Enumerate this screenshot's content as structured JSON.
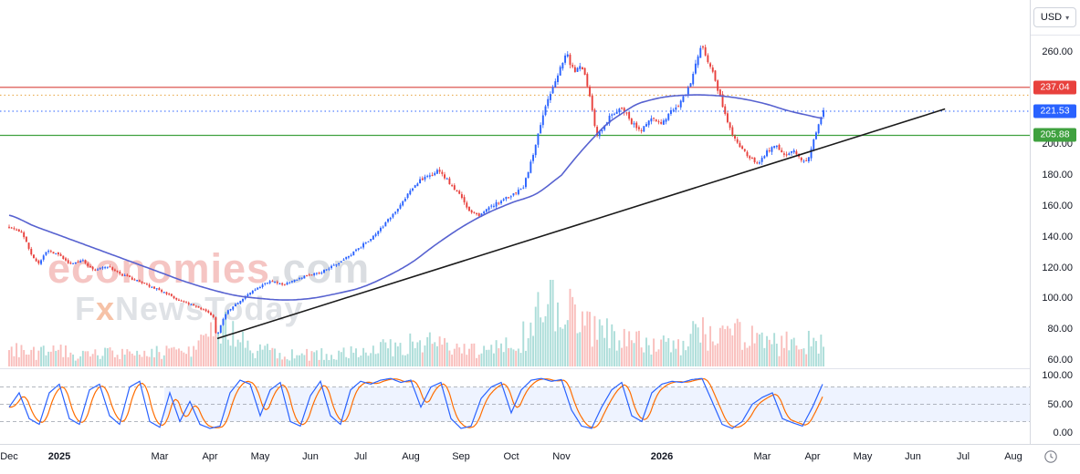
{
  "header": {
    "currency_selector": {
      "label": "USD",
      "chevron": "▾"
    }
  },
  "watermark": {
    "brand": "economies",
    "brand_suffix": ".com",
    "tagline_prefix": "F",
    "tagline_x": "x",
    "tagline_rest": "NewsToday"
  },
  "price_axis": {
    "ticks": [
      {
        "label": "260.00",
        "value": 260
      },
      {
        "label": "200.00",
        "value": 200
      },
      {
        "label": "180.00",
        "value": 180
      },
      {
        "label": "160.00",
        "value": 160
      },
      {
        "label": "140.00",
        "value": 140
      },
      {
        "label": "120.00",
        "value": 120
      },
      {
        "label": "100.00",
        "value": 100
      },
      {
        "label": "80.00",
        "value": 80
      },
      {
        "label": "60.00",
        "value": 60
      }
    ],
    "badges": [
      {
        "name": "resistance",
        "label": "237.04",
        "value": 237.04,
        "color": "#e8413d"
      },
      {
        "name": "last-price",
        "label": "221.53",
        "value": 221.53,
        "color": "#2962ff"
      },
      {
        "name": "support",
        "label": "205.88",
        "value": 205.88,
        "color": "#3fa13f"
      }
    ]
  },
  "oscillator_axis": {
    "ticks": [
      {
        "label": "100.00",
        "value": 100
      },
      {
        "label": "50.00",
        "value": 50
      },
      {
        "label": "0.00",
        "value": 0
      }
    ]
  },
  "time_axis": {
    "labels": [
      {
        "text": "Dec",
        "m": 0,
        "bold": false
      },
      {
        "text": "2025",
        "m": 1,
        "bold": true
      },
      {
        "text": "Mar",
        "m": 3,
        "bold": false
      },
      {
        "text": "Apr",
        "m": 4,
        "bold": false
      },
      {
        "text": "May",
        "m": 5,
        "bold": false
      },
      {
        "text": "Jun",
        "m": 6,
        "bold": false
      },
      {
        "text": "Jul",
        "m": 7,
        "bold": false
      },
      {
        "text": "Aug",
        "m": 8,
        "bold": false
      },
      {
        "text": "Sep",
        "m": 9,
        "bold": false
      },
      {
        "text": "Oct",
        "m": 10,
        "bold": false
      },
      {
        "text": "Nov",
        "m": 11,
        "bold": false
      },
      {
        "text": "2026",
        "m": 13,
        "bold": true
      },
      {
        "text": "Mar",
        "m": 15,
        "bold": false
      },
      {
        "text": "Apr",
        "m": 16,
        "bold": false
      },
      {
        "text": "May",
        "m": 17,
        "bold": false
      },
      {
        "text": "Jun",
        "m": 18,
        "bold": false
      },
      {
        "text": "Jul",
        "m": 19,
        "bold": false
      },
      {
        "text": "Aug",
        "m": 20,
        "bold": false
      }
    ]
  },
  "chart_data": {
    "type": "candlestick",
    "currency": "USD",
    "interval": "daily",
    "x_unit": "months since Dec 2024 (0 = Dec 2024, 13 = Jan 2026)",
    "visible_range": {
      "from": "Dec 2024",
      "to": "Aug 2026"
    },
    "y_axis": {
      "ylim": [
        55,
        272
      ],
      "tick_values": [
        260,
        240,
        220,
        200,
        180,
        160,
        140,
        120,
        100,
        80,
        60
      ]
    },
    "x_tick_labels": [
      "Dec",
      "2025",
      "Mar",
      "Apr",
      "May",
      "Jun",
      "Jul",
      "Aug",
      "Sep",
      "Oct",
      "Nov",
      "2026",
      "Mar",
      "Apr",
      "May",
      "Jun",
      "Jul",
      "Aug"
    ],
    "last_price": 221.53,
    "levels": [
      {
        "value": 237.04,
        "label": "237.04",
        "color": "#d8453f",
        "style": "solid",
        "role": "resistance"
      },
      {
        "value": 232.0,
        "label": "",
        "color": "#e8a33d",
        "style": "dotted",
        "role": "minor-level"
      },
      {
        "value": 221.53,
        "label": "221.53",
        "color": "#2962ff",
        "style": "dotted",
        "role": "last-price"
      },
      {
        "value": 205.88,
        "label": "205.88",
        "color": "#3fa13f",
        "style": "solid",
        "role": "support"
      }
    ],
    "trendline": {
      "from": {
        "month": 4.145,
        "price": 74
      },
      "to": {
        "month": 18.64,
        "price": 223
      }
    },
    "close_path": [
      [
        0,
        147
      ],
      [
        0.25,
        143
      ],
      [
        0.45,
        128
      ],
      [
        0.6,
        122
      ],
      [
        0.75,
        131
      ],
      [
        1,
        128
      ],
      [
        1.2,
        122
      ],
      [
        1.45,
        125
      ],
      [
        1.7,
        118
      ],
      [
        1.95,
        121
      ],
      [
        2.2,
        116
      ],
      [
        2.5,
        112
      ],
      [
        2.8,
        108
      ],
      [
        3.1,
        104
      ],
      [
        3.35,
        99
      ],
      [
        3.6,
        96
      ],
      [
        3.85,
        93
      ],
      [
        4,
        90
      ],
      [
        4.08,
        88
      ],
      [
        4.13,
        74
      ],
      [
        4.2,
        82
      ],
      [
        4.35,
        92
      ],
      [
        4.5,
        96
      ],
      [
        4.7,
        101
      ],
      [
        4.95,
        107
      ],
      [
        5.2,
        111
      ],
      [
        5.45,
        109
      ],
      [
        5.7,
        112
      ],
      [
        5.95,
        115
      ],
      [
        6.2,
        117
      ],
      [
        6.45,
        121
      ],
      [
        6.7,
        126
      ],
      [
        6.95,
        132
      ],
      [
        7.2,
        139
      ],
      [
        7.45,
        147
      ],
      [
        7.7,
        157
      ],
      [
        7.95,
        168
      ],
      [
        8.15,
        176
      ],
      [
        8.35,
        179
      ],
      [
        8.55,
        183
      ],
      [
        8.75,
        176
      ],
      [
        8.95,
        168
      ],
      [
        9.15,
        158
      ],
      [
        9.35,
        153
      ],
      [
        9.6,
        160
      ],
      [
        9.85,
        164
      ],
      [
        10.05,
        168
      ],
      [
        10.25,
        173
      ],
      [
        10.45,
        195
      ],
      [
        10.65,
        222
      ],
      [
        10.85,
        238
      ],
      [
        11,
        252
      ],
      [
        11.05,
        256
      ],
      [
        11.1,
        262
      ],
      [
        11.18,
        252
      ],
      [
        11.25,
        247
      ],
      [
        11.4,
        252
      ],
      [
        11.55,
        235
      ],
      [
        11.7,
        205
      ],
      [
        11.85,
        212
      ],
      [
        12,
        220
      ],
      [
        12.2,
        224
      ],
      [
        12.4,
        214
      ],
      [
        12.6,
        209
      ],
      [
        12.8,
        217
      ],
      [
        13,
        213
      ],
      [
        13.2,
        222
      ],
      [
        13.4,
        228
      ],
      [
        13.6,
        243
      ],
      [
        13.75,
        262
      ],
      [
        13.8,
        264
      ],
      [
        13.88,
        256
      ],
      [
        14,
        248
      ],
      [
        14.15,
        232
      ],
      [
        14.35,
        210
      ],
      [
        14.55,
        198
      ],
      [
        14.75,
        191
      ],
      [
        14.95,
        188
      ],
      [
        15.1,
        196
      ],
      [
        15.3,
        199
      ],
      [
        15.45,
        193
      ],
      [
        15.6,
        197
      ],
      [
        15.75,
        191
      ],
      [
        15.9,
        189
      ],
      [
        16,
        200
      ],
      [
        16.1,
        212
      ],
      [
        16.2,
        221.53
      ]
    ],
    "ma_path": [
      [
        0,
        154
      ],
      [
        0.5,
        147
      ],
      [
        1,
        141
      ],
      [
        1.5,
        135
      ],
      [
        2,
        129
      ],
      [
        2.5,
        123
      ],
      [
        3,
        117
      ],
      [
        3.5,
        111
      ],
      [
        4,
        106
      ],
      [
        4.5,
        102
      ],
      [
        5,
        100
      ],
      [
        5.5,
        99
      ],
      [
        6,
        100
      ],
      [
        6.5,
        103
      ],
      [
        7,
        107
      ],
      [
        7.5,
        114
      ],
      [
        8,
        123
      ],
      [
        8.5,
        135
      ],
      [
        9,
        146
      ],
      [
        9.5,
        155
      ],
      [
        10,
        162
      ],
      [
        10.5,
        168
      ],
      [
        11,
        180
      ],
      [
        11.3,
        192
      ],
      [
        11.6,
        203
      ],
      [
        11.9,
        213
      ],
      [
        12.2,
        220
      ],
      [
        12.5,
        226
      ],
      [
        12.8,
        229
      ],
      [
        13.1,
        231
      ],
      [
        13.5,
        232
      ],
      [
        13.9,
        232
      ],
      [
        14.3,
        231
      ],
      [
        14.7,
        229
      ],
      [
        15.1,
        226
      ],
      [
        15.5,
        222
      ],
      [
        15.9,
        219
      ],
      [
        16.2,
        217
      ]
    ],
    "volume_rel_path": [
      [
        0,
        0.18
      ],
      [
        0.5,
        0.15
      ],
      [
        1,
        0.16
      ],
      [
        1.5,
        0.13
      ],
      [
        2,
        0.14
      ],
      [
        2.5,
        0.13
      ],
      [
        3,
        0.16
      ],
      [
        3.5,
        0.2
      ],
      [
        4,
        0.3
      ],
      [
        4.15,
        0.65
      ],
      [
        4.4,
        0.38
      ],
      [
        4.8,
        0.22
      ],
      [
        5.2,
        0.16
      ],
      [
        5.6,
        0.13
      ],
      [
        6,
        0.13
      ],
      [
        6.5,
        0.14
      ],
      [
        7,
        0.17
      ],
      [
        7.5,
        0.2
      ],
      [
        8,
        0.24
      ],
      [
        8.5,
        0.27
      ],
      [
        9,
        0.2
      ],
      [
        9.5,
        0.18
      ],
      [
        10,
        0.22
      ],
      [
        10.4,
        0.45
      ],
      [
        10.6,
        0.75
      ],
      [
        10.9,
        0.6
      ],
      [
        11.1,
        0.65
      ],
      [
        11.4,
        0.5
      ],
      [
        11.7,
        0.45
      ],
      [
        12,
        0.32
      ],
      [
        12.5,
        0.26
      ],
      [
        13,
        0.24
      ],
      [
        13.5,
        0.3
      ],
      [
        13.8,
        0.42
      ],
      [
        14.1,
        0.38
      ],
      [
        14.4,
        0.42
      ],
      [
        14.8,
        0.3
      ],
      [
        15.2,
        0.24
      ],
      [
        15.6,
        0.26
      ],
      [
        16,
        0.3
      ],
      [
        16.2,
        0.34
      ]
    ],
    "stochastic": {
      "k_color": "#2962ff",
      "d_color": "#ff6d00",
      "bands": [
        80,
        50,
        20
      ],
      "range": [
        0,
        100
      ],
      "k_path": [
        [
          0,
          45
        ],
        [
          0.2,
          70
        ],
        [
          0.4,
          25
        ],
        [
          0.6,
          15
        ],
        [
          0.8,
          70
        ],
        [
          1,
          85
        ],
        [
          1.2,
          25
        ],
        [
          1.4,
          15
        ],
        [
          1.6,
          75
        ],
        [
          1.8,
          85
        ],
        [
          2,
          30
        ],
        [
          2.2,
          15
        ],
        [
          2.4,
          80
        ],
        [
          2.6,
          90
        ],
        [
          2.8,
          20
        ],
        [
          3,
          10
        ],
        [
          3.2,
          70
        ],
        [
          3.4,
          20
        ],
        [
          3.6,
          55
        ],
        [
          3.8,
          15
        ],
        [
          4,
          8
        ],
        [
          4.2,
          12
        ],
        [
          4.4,
          70
        ],
        [
          4.6,
          92
        ],
        [
          4.8,
          85
        ],
        [
          5,
          30
        ],
        [
          5.2,
          75
        ],
        [
          5.4,
          88
        ],
        [
          5.6,
          20
        ],
        [
          5.8,
          12
        ],
        [
          6,
          65
        ],
        [
          6.2,
          90
        ],
        [
          6.4,
          30
        ],
        [
          6.6,
          15
        ],
        [
          6.8,
          75
        ],
        [
          7,
          90
        ],
        [
          7.2,
          85
        ],
        [
          7.4,
          92
        ],
        [
          7.6,
          95
        ],
        [
          7.8,
          88
        ],
        [
          8,
          92
        ],
        [
          8.2,
          45
        ],
        [
          8.4,
          80
        ],
        [
          8.6,
          88
        ],
        [
          8.8,
          25
        ],
        [
          9,
          8
        ],
        [
          9.2,
          12
        ],
        [
          9.4,
          60
        ],
        [
          9.6,
          80
        ],
        [
          9.8,
          88
        ],
        [
          10,
          35
        ],
        [
          10.2,
          75
        ],
        [
          10.4,
          92
        ],
        [
          10.6,
          95
        ],
        [
          10.8,
          90
        ],
        [
          11,
          93
        ],
        [
          11.2,
          40
        ],
        [
          11.4,
          12
        ],
        [
          11.6,
          8
        ],
        [
          11.8,
          45
        ],
        [
          12,
          75
        ],
        [
          12.2,
          88
        ],
        [
          12.4,
          30
        ],
        [
          12.6,
          20
        ],
        [
          12.8,
          70
        ],
        [
          13,
          85
        ],
        [
          13.2,
          90
        ],
        [
          13.4,
          88
        ],
        [
          13.6,
          93
        ],
        [
          13.8,
          95
        ],
        [
          14,
          55
        ],
        [
          14.2,
          15
        ],
        [
          14.4,
          8
        ],
        [
          14.6,
          20
        ],
        [
          14.8,
          50
        ],
        [
          15,
          62
        ],
        [
          15.2,
          70
        ],
        [
          15.4,
          25
        ],
        [
          15.6,
          18
        ],
        [
          15.8,
          12
        ],
        [
          16,
          45
        ],
        [
          16.2,
          85
        ]
      ]
    },
    "colors": {
      "up": "#2962ff",
      "down": "#e8413d",
      "ma": "#5762d0",
      "vol_up": "rgba(38,166,154,0.38)",
      "vol_down": "rgba(239,83,80,0.38)",
      "trendline": "#1b1b1b",
      "stoch_band_fill": "rgba(41,98,255,0.08)"
    }
  }
}
